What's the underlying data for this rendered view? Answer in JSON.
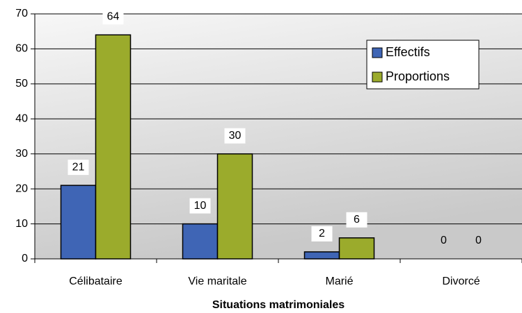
{
  "chart_data": {
    "type": "bar",
    "x_label": "Situations matrimoniales",
    "categories": [
      "Célibataire",
      "Vie maritale",
      "Marié",
      "Divorcé"
    ],
    "series": [
      {
        "name": "Effectifs",
        "color": "#3f65b5",
        "values": [
          21,
          10,
          2,
          0
        ]
      },
      {
        "name": "Proportions",
        "color": "#9bab2c",
        "values": [
          64,
          30,
          6,
          0
        ]
      }
    ],
    "ylim": [
      0,
      70
    ],
    "yticks": [
      0,
      10,
      20,
      30,
      40,
      50,
      60,
      70
    ],
    "grid": true,
    "legend": "upper right"
  }
}
